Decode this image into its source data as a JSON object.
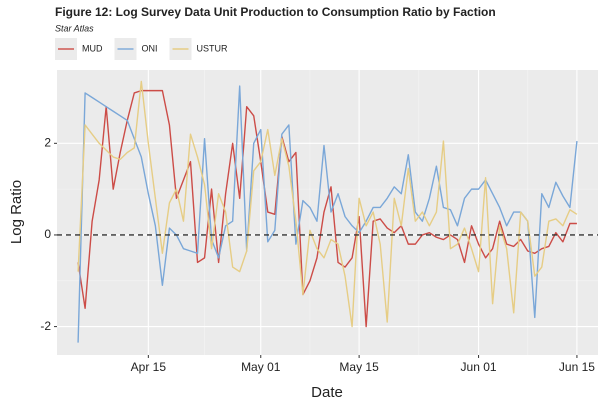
{
  "chart_data": {
    "type": "line",
    "title": "Figure 12: Log Survey Data Unit Production to Consumption Ratio by Faction",
    "subtitle": "Star Atlas",
    "x_label": "Date",
    "y_label": "Log Ratio",
    "x": [
      "04-05",
      "04-06",
      "04-07",
      "04-08",
      "04-09",
      "04-10",
      "04-11",
      "04-12",
      "04-13",
      "04-14",
      "04-15",
      "04-16",
      "04-17",
      "04-18",
      "04-19",
      "04-20",
      "04-21",
      "04-22",
      "04-23",
      "04-24",
      "04-25",
      "04-26",
      "04-27",
      "04-28",
      "04-29",
      "04-30",
      "05-01",
      "05-02",
      "05-03",
      "05-04",
      "05-05",
      "05-06",
      "05-07",
      "05-08",
      "05-09",
      "05-10",
      "05-11",
      "05-12",
      "05-13",
      "05-14",
      "05-15",
      "05-16",
      "05-17",
      "05-18",
      "05-19",
      "05-20",
      "05-21",
      "05-22",
      "05-23",
      "05-24",
      "05-25",
      "05-26",
      "05-27",
      "05-28",
      "05-29",
      "05-30",
      "05-31",
      "06-01",
      "06-02",
      "06-03",
      "06-04",
      "06-05",
      "06-06",
      "06-07",
      "06-08",
      "06-09",
      "06-10",
      "06-11",
      "06-12",
      "06-13",
      "06-14",
      "06-15"
    ],
    "series": [
      {
        "name": "MUD",
        "color": "#cc4c47",
        "values": [
          -0.6,
          -1.6,
          0.3,
          1.2,
          2.8,
          1.0,
          1.8,
          2.5,
          3.1,
          3.15,
          3.15,
          3.15,
          3.15,
          2.4,
          0.8,
          1.2,
          1.6,
          -0.6,
          -0.5,
          1.0,
          -0.6,
          0.9,
          2.0,
          0.8,
          2.8,
          2.6,
          1.6,
          0.5,
          0.45,
          2.15,
          1.6,
          1.8,
          -1.3,
          -1.0,
          -0.5,
          0.5,
          1.05,
          -0.6,
          -0.7,
          -0.5,
          0.4,
          -2.0,
          0.3,
          0.35,
          0.15,
          0.05,
          0.2,
          -0.2,
          -0.2,
          0.0,
          0.05,
          -0.05,
          -0.1,
          0.0,
          -0.1,
          -0.6,
          0.2,
          -0.2,
          -0.5,
          -0.3,
          0.3,
          -0.2,
          -0.25,
          -0.1,
          -0.35,
          -0.4,
          -0.3,
          -0.25,
          0.05,
          -0.15,
          0.25,
          0.25
        ]
      },
      {
        "name": "ONI",
        "color": "#7aa7d8",
        "values": [
          -2.35,
          3.1,
          3.0,
          2.9,
          2.8,
          2.7,
          2.6,
          2.5,
          2.1,
          1.7,
          0.9,
          0.2,
          -1.1,
          0.15,
          0.0,
          -0.3,
          -0.35,
          -0.4,
          2.1,
          -0.1,
          -0.5,
          0.2,
          0.3,
          3.25,
          -0.35,
          2.0,
          2.3,
          -0.15,
          0.1,
          2.2,
          2.4,
          -0.2,
          0.75,
          0.6,
          0.3,
          1.95,
          0.5,
          0.9,
          0.4,
          0.2,
          0.05,
          0.3,
          0.6,
          0.6,
          0.8,
          1.05,
          0.9,
          1.75,
          0.5,
          0.3,
          0.8,
          1.5,
          0.6,
          0.55,
          0.2,
          0.8,
          1.0,
          1.0,
          1.2,
          0.9,
          0.6,
          0.2,
          0.5,
          0.5,
          0.3,
          -1.8,
          0.9,
          0.6,
          1.15,
          0.85,
          0.6,
          2.05
        ]
      },
      {
        "name": "USTUR",
        "color": "#e6cd85",
        "values": [
          -0.8,
          2.4,
          2.2,
          2.0,
          1.85,
          1.7,
          1.65,
          1.8,
          1.9,
          3.35,
          2.0,
          0.8,
          -0.4,
          0.7,
          1.0,
          0.3,
          2.2,
          1.7,
          1.1,
          -0.3,
          0.9,
          0.5,
          -0.7,
          -0.8,
          -0.35,
          1.4,
          1.6,
          2.3,
          1.3,
          2.1,
          1.5,
          0.3,
          -1.3,
          0.1,
          -0.3,
          -0.5,
          -0.1,
          -0.2,
          -0.9,
          -2.0,
          0.8,
          0.2,
          0.5,
          -0.2,
          -1.9,
          0.8,
          0.2,
          1.45,
          0.3,
          0.5,
          0.2,
          0.5,
          2.05,
          -0.3,
          -0.2,
          0.15,
          -0.3,
          -0.8,
          1.25,
          -1.5,
          0.2,
          -0.3,
          -1.7,
          0.5,
          0.3,
          -0.9,
          -0.7,
          0.3,
          0.35,
          0.2,
          0.55,
          0.45
        ]
      }
    ],
    "xlim": [
      "04-02",
      "06-18"
    ],
    "xticks": [
      {
        "value": "04-15",
        "label": "Apr 15"
      },
      {
        "value": "05-01",
        "label": "May 01"
      },
      {
        "value": "05-15",
        "label": "May 15"
      },
      {
        "value": "06-01",
        "label": "Jun 01"
      },
      {
        "value": "06-15",
        "label": "Jun 15"
      }
    ],
    "ylim": [
      -2.62,
      3.6
    ],
    "yticks": [
      -2,
      0,
      2
    ],
    "hline": 0,
    "grid": true,
    "legend": "top-left"
  }
}
